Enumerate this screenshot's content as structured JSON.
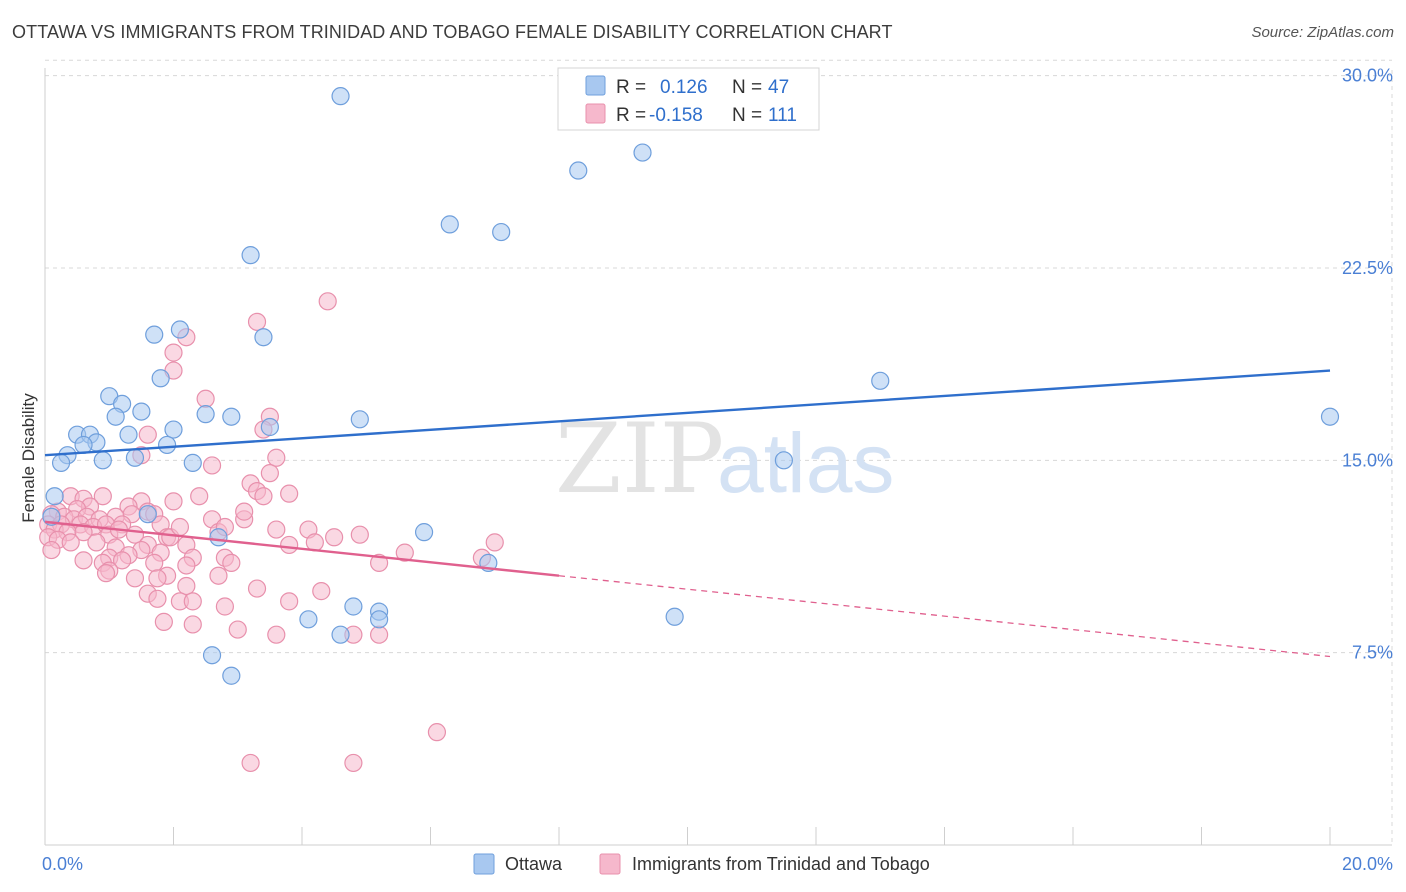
{
  "header": {
    "title": "OTTAWA VS IMMIGRANTS FROM TRINIDAD AND TOBAGO FEMALE DISABILITY CORRELATION CHART",
    "source": "Source: ZipAtlas.com"
  },
  "watermark": {
    "zip": "ZIP",
    "atlas": "atlas"
  },
  "colors": {
    "ottawa_fill": "#a8c8f0",
    "ottawa_stroke": "#6f9fdc",
    "ottawa_line": "#2f6fcc",
    "tt_fill": "#f6b8cc",
    "tt_stroke": "#e890ac",
    "tt_line": "#e0608e",
    "tick_text": "#4a7fd4",
    "grid": "#d8d8d8"
  },
  "legend": {
    "rows": [
      {
        "r_label": "R =",
        "r_value": "0.126",
        "n_label": "N =",
        "n_value": "47"
      },
      {
        "r_label": "R =",
        "r_value": "-0.158",
        "n_label": "N =",
        "n_value": "111"
      }
    ]
  },
  "chart_data": {
    "type": "scatter",
    "title": "OTTAWA VS IMMIGRANTS FROM TRINIDAD AND TOBAGO FEMALE DISABILITY CORRELATION CHART",
    "xlabel": "",
    "ylabel": "Female Disability",
    "xlim": [
      0,
      20
    ],
    "ylim": [
      0,
      31
    ],
    "x_tick_labels": [
      "0.0%",
      "20.0%"
    ],
    "y_ticks": [
      7.5,
      15.0,
      22.5,
      30.0
    ],
    "y_tick_labels": [
      "7.5%",
      "15.0%",
      "22.5%",
      "30.0%"
    ],
    "grid": true,
    "legend_position": "top-center",
    "series": [
      {
        "name": "Ottawa",
        "trend": {
          "x": [
            0,
            20
          ],
          "y": [
            15.2,
            18.5
          ],
          "style": "solid"
        },
        "points": [
          [
            4.6,
            29.2
          ],
          [
            9.3,
            27.0
          ],
          [
            8.3,
            26.3
          ],
          [
            6.3,
            24.2
          ],
          [
            7.1,
            23.9
          ],
          [
            3.2,
            23.0
          ],
          [
            2.1,
            20.1
          ],
          [
            1.7,
            19.9
          ],
          [
            3.4,
            19.8
          ],
          [
            1.8,
            18.2
          ],
          [
            13.0,
            18.1
          ],
          [
            1.0,
            17.5
          ],
          [
            1.2,
            17.2
          ],
          [
            1.5,
            16.9
          ],
          [
            1.1,
            16.7
          ],
          [
            2.5,
            16.8
          ],
          [
            2.9,
            16.7
          ],
          [
            4.9,
            16.6
          ],
          [
            3.5,
            16.3
          ],
          [
            2.0,
            16.2
          ],
          [
            1.3,
            16.0
          ],
          [
            0.5,
            16.0
          ],
          [
            0.7,
            16.0
          ],
          [
            0.8,
            15.7
          ],
          [
            0.6,
            15.6
          ],
          [
            1.9,
            15.6
          ],
          [
            1.4,
            15.1
          ],
          [
            0.35,
            15.2
          ],
          [
            0.9,
            15.0
          ],
          [
            0.25,
            14.9
          ],
          [
            2.3,
            14.9
          ],
          [
            11.5,
            15.0
          ],
          [
            0.15,
            13.6
          ],
          [
            1.6,
            12.9
          ],
          [
            0.1,
            12.8
          ],
          [
            5.9,
            12.2
          ],
          [
            2.7,
            12.0
          ],
          [
            6.9,
            11.0
          ],
          [
            4.8,
            9.3
          ],
          [
            5.2,
            9.1
          ],
          [
            9.8,
            8.9
          ],
          [
            4.1,
            8.8
          ],
          [
            5.2,
            8.8
          ],
          [
            4.6,
            8.2
          ],
          [
            2.6,
            7.4
          ],
          [
            2.9,
            6.6
          ],
          [
            20.0,
            16.7
          ]
        ]
      },
      {
        "name": "Immigrants from Trinidad and Tobago",
        "trend": {
          "x": [
            0,
            8
          ],
          "y": [
            12.6,
            10.5
          ],
          "style": "solid",
          "extended_x": [
            8,
            20
          ],
          "extended_y": [
            10.5,
            7.35
          ],
          "extended_style": "dashed"
        },
        "points": [
          [
            4.4,
            21.2
          ],
          [
            3.3,
            20.4
          ],
          [
            2.2,
            19.8
          ],
          [
            2.0,
            19.2
          ],
          [
            2.0,
            18.5
          ],
          [
            2.5,
            17.4
          ],
          [
            3.5,
            16.7
          ],
          [
            3.4,
            16.2
          ],
          [
            1.6,
            16.0
          ],
          [
            1.5,
            15.2
          ],
          [
            3.6,
            15.1
          ],
          [
            2.6,
            14.8
          ],
          [
            3.5,
            14.5
          ],
          [
            3.2,
            14.1
          ],
          [
            3.3,
            13.8
          ],
          [
            3.4,
            13.6
          ],
          [
            3.8,
            13.7
          ],
          [
            2.4,
            13.6
          ],
          [
            0.4,
            13.6
          ],
          [
            0.6,
            13.5
          ],
          [
            0.9,
            13.6
          ],
          [
            1.5,
            13.4
          ],
          [
            2.0,
            13.4
          ],
          [
            0.7,
            13.2
          ],
          [
            0.5,
            13.1
          ],
          [
            1.3,
            13.2
          ],
          [
            1.6,
            13.0
          ],
          [
            0.2,
            13.0
          ],
          [
            0.1,
            12.9
          ],
          [
            0.3,
            12.8
          ],
          [
            0.45,
            12.7
          ],
          [
            0.65,
            12.8
          ],
          [
            0.85,
            12.7
          ],
          [
            1.1,
            12.8
          ],
          [
            1.35,
            12.9
          ],
          [
            1.7,
            12.9
          ],
          [
            2.6,
            12.7
          ],
          [
            3.1,
            12.7
          ],
          [
            0.05,
            12.5
          ],
          [
            0.25,
            12.5
          ],
          [
            0.55,
            12.5
          ],
          [
            0.75,
            12.4
          ],
          [
            0.95,
            12.5
          ],
          [
            1.2,
            12.5
          ],
          [
            1.8,
            12.5
          ],
          [
            4.1,
            12.3
          ],
          [
            0.15,
            12.3
          ],
          [
            0.35,
            12.2
          ],
          [
            0.6,
            12.2
          ],
          [
            1.0,
            12.1
          ],
          [
            1.4,
            12.1
          ],
          [
            1.9,
            12.0
          ],
          [
            2.7,
            12.2
          ],
          [
            4.5,
            12.0
          ],
          [
            0.05,
            12.0
          ],
          [
            0.2,
            11.9
          ],
          [
            0.4,
            11.8
          ],
          [
            0.8,
            11.8
          ],
          [
            1.6,
            11.7
          ],
          [
            2.2,
            11.7
          ],
          [
            3.8,
            11.7
          ],
          [
            4.2,
            11.8
          ],
          [
            7.0,
            11.8
          ],
          [
            0.1,
            11.5
          ],
          [
            1.5,
            11.5
          ],
          [
            1.8,
            11.4
          ],
          [
            1.1,
            11.6
          ],
          [
            2.8,
            11.2
          ],
          [
            5.6,
            11.4
          ],
          [
            1.0,
            11.2
          ],
          [
            1.3,
            11.3
          ],
          [
            2.3,
            11.2
          ],
          [
            0.6,
            11.1
          ],
          [
            1.2,
            11.1
          ],
          [
            6.8,
            11.2
          ],
          [
            1.7,
            11.0
          ],
          [
            2.2,
            10.9
          ],
          [
            0.9,
            11.0
          ],
          [
            5.2,
            11.0
          ],
          [
            2.9,
            11.0
          ],
          [
            1.0,
            10.7
          ],
          [
            1.9,
            10.5
          ],
          [
            1.4,
            10.4
          ],
          [
            2.7,
            10.5
          ],
          [
            0.95,
            10.6
          ],
          [
            1.75,
            10.4
          ],
          [
            2.2,
            10.1
          ],
          [
            3.3,
            10.0
          ],
          [
            4.3,
            9.9
          ],
          [
            1.6,
            9.8
          ],
          [
            1.75,
            9.6
          ],
          [
            2.1,
            9.5
          ],
          [
            3.8,
            9.5
          ],
          [
            2.8,
            9.3
          ],
          [
            2.3,
            9.5
          ],
          [
            1.85,
            8.7
          ],
          [
            2.3,
            8.6
          ],
          [
            3.0,
            8.4
          ],
          [
            3.6,
            8.2
          ],
          [
            4.8,
            8.2
          ],
          [
            5.2,
            8.2
          ],
          [
            6.1,
            4.4
          ],
          [
            3.2,
            3.2
          ],
          [
            4.8,
            3.2
          ],
          [
            3.1,
            13.0
          ],
          [
            2.8,
            12.4
          ],
          [
            1.95,
            12.0
          ],
          [
            3.6,
            12.3
          ],
          [
            2.1,
            12.4
          ],
          [
            1.15,
            12.3
          ],
          [
            4.9,
            12.1
          ]
        ]
      }
    ]
  },
  "bottom_legend": {
    "items": [
      {
        "label": "Ottawa"
      },
      {
        "label": "Immigrants from Trinidad and Tobago"
      }
    ]
  }
}
